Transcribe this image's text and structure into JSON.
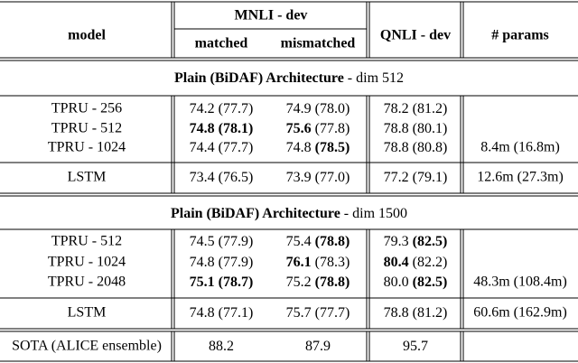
{
  "header": {
    "model": "model",
    "mnli": "MNLI - dev",
    "matched": "matched",
    "mismatched": "mismatched",
    "qnli": "QNLI - dev",
    "params": "# params"
  },
  "sections": [
    {
      "title": "Plain (BiDAF) Architecture",
      "subtitle": "- dim 512",
      "rows": [
        {
          "model": "TPRU - 256",
          "cells": [
            {
              "v": "74.2",
              "p": "(77.7)",
              "b": [
                false,
                false
              ]
            },
            {
              "v": "74.9",
              "p": "(78.0)",
              "b": [
                false,
                false
              ]
            },
            {
              "v": "78.2",
              "p": "(81.2)",
              "b": [
                false,
                false
              ]
            }
          ],
          "params": null
        },
        {
          "model": "TPRU - 512",
          "cells": [
            {
              "v": "74.8",
              "p": "(78.1)",
              "b": [
                true,
                true
              ]
            },
            {
              "v": "75.6",
              "p": "(77.8)",
              "b": [
                true,
                false
              ]
            },
            {
              "v": "78.8",
              "p": "(80.1)",
              "b": [
                false,
                false
              ]
            }
          ],
          "params": null
        },
        {
          "model": "TPRU - 1024",
          "cells": [
            {
              "v": "74.4",
              "p": "(77.7)",
              "b": [
                false,
                false
              ]
            },
            {
              "v": "74.8",
              "p": "(78.5)",
              "b": [
                false,
                true
              ]
            },
            {
              "v": "78.8",
              "p": "(80.8)",
              "b": [
                false,
                false
              ]
            }
          ],
          "params": "8.4m (16.8m)"
        }
      ],
      "lstm": {
        "model": "LSTM",
        "cells": [
          {
            "v": "73.4",
            "p": "(76.5)",
            "b": [
              false,
              false
            ]
          },
          {
            "v": "73.9",
            "p": "(77.0)",
            "b": [
              false,
              false
            ]
          },
          {
            "v": "77.2",
            "p": "(79.1)",
            "b": [
              false,
              false
            ]
          }
        ],
        "params": "12.6m (27.3m)"
      }
    },
    {
      "title": "Plain (BiDAF) Architecture",
      "subtitle": "- dim 1500",
      "rows": [
        {
          "model": "TPRU - 512",
          "cells": [
            {
              "v": "74.5",
              "p": "(77.9)",
              "b": [
                false,
                false
              ]
            },
            {
              "v": "75.4",
              "p": "(78.8)",
              "b": [
                false,
                true
              ]
            },
            {
              "v": "79.3",
              "p": "(82.5)",
              "b": [
                false,
                true
              ]
            }
          ],
          "params": null
        },
        {
          "model": "TPRU - 1024",
          "cells": [
            {
              "v": "74.8",
              "p": "(77.9)",
              "b": [
                false,
                false
              ]
            },
            {
              "v": "76.1",
              "p": "(78.3)",
              "b": [
                true,
                false
              ]
            },
            {
              "v": "80.4",
              "p": "(82.2)",
              "b": [
                true,
                false
              ]
            }
          ],
          "params": null
        },
        {
          "model": "TPRU - 2048",
          "cells": [
            {
              "v": "75.1",
              "p": "(78.7)",
              "b": [
                true,
                true
              ]
            },
            {
              "v": "75.2",
              "p": "(78.8)",
              "b": [
                false,
                true
              ]
            },
            {
              "v": "80.0",
              "p": "(82.5)",
              "b": [
                false,
                true
              ]
            }
          ],
          "params": "48.3m (108.4m)"
        }
      ],
      "lstm": {
        "model": "LSTM",
        "cells": [
          {
            "v": "74.8",
            "p": "(77.1)",
            "b": [
              false,
              false
            ]
          },
          {
            "v": "75.7",
            "p": "(77.7)",
            "b": [
              false,
              false
            ]
          },
          {
            "v": "78.8",
            "p": "(81.2)",
            "b": [
              false,
              false
            ]
          }
        ],
        "params": "60.6m (162.9m)"
      }
    }
  ],
  "sota": {
    "model": "SOTA (ALICE ensemble)",
    "cells": [
      {
        "v": "88.2",
        "p": null,
        "b": [
          false,
          false
        ]
      },
      {
        "v": "87.9",
        "p": null,
        "b": [
          false,
          false
        ]
      },
      {
        "v": "95.7",
        "p": null,
        "b": [
          false,
          false
        ]
      }
    ],
    "params": null
  }
}
